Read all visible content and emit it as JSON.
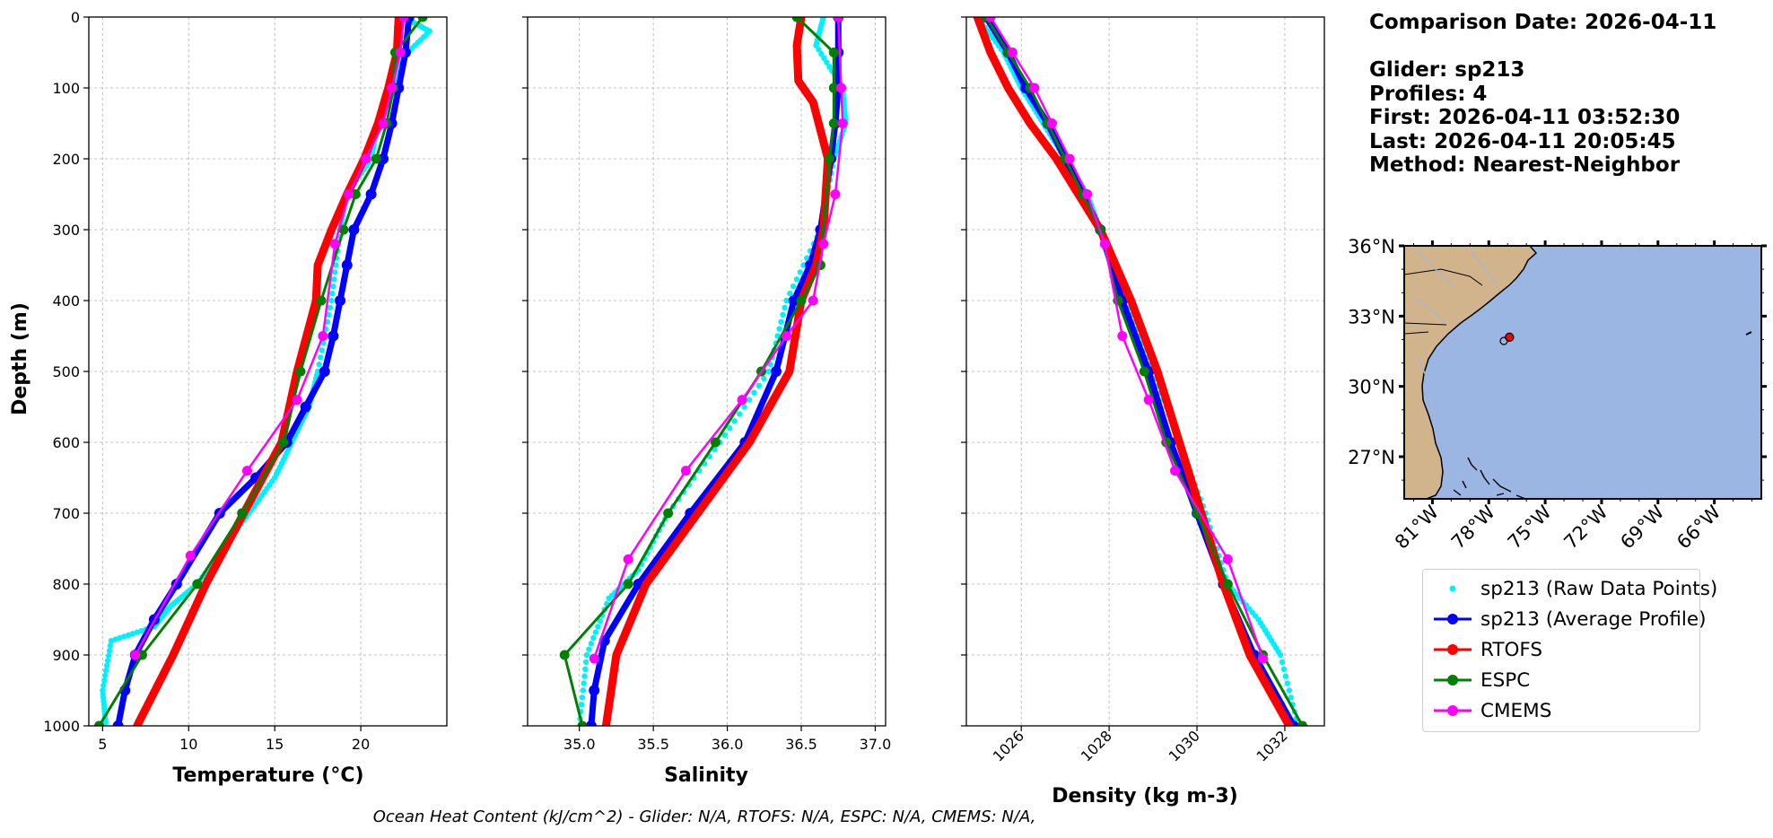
{
  "info": {
    "comparison_date": "Comparison Date: 2026-04-11",
    "glider": "Glider: sp213",
    "profiles": "Profiles: 4",
    "first": "First: 2026-04-11 03:52:30",
    "last": "Last: 2026-04-11 20:05:45",
    "method": "Method: Nearest-Neighbor"
  },
  "footer": "Ocean Heat Content (kJ/cm^2) - Glider: N/A,  RTOFS: N/A,  ESPC: N/A,  CMEMS: N/A,",
  "colors": {
    "raw": "#00f0ff",
    "avg": "#0000ff",
    "rtofs": "#ff0000",
    "espc": "#008000",
    "cmems": "#ff00ff",
    "ocean": "#9bb6e3",
    "land": "#d2b48c"
  },
  "legend": [
    {
      "key": "raw",
      "label": "sp213 (Raw Data Points)",
      "style": "points"
    },
    {
      "key": "avg",
      "label": "sp213 (Average Profile)",
      "style": "line"
    },
    {
      "key": "rtofs",
      "label": "RTOFS",
      "style": "line"
    },
    {
      "key": "espc",
      "label": "ESPC",
      "style": "line"
    },
    {
      "key": "cmems",
      "label": "CMEMS",
      "style": "line"
    }
  ],
  "map": {
    "lon_ticks": [
      "81°W",
      "78°W",
      "75°W",
      "72°W",
      "69°W",
      "66°W"
    ],
    "lat_ticks": [
      "36°N",
      "33°N",
      "30°N",
      "27°N"
    ],
    "extent": {
      "lon": [
        -82.5,
        -63.5
      ],
      "lat": [
        25.2,
        36.0
      ]
    },
    "glider_position": {
      "lon": -76.9,
      "lat": 32.1
    }
  },
  "chart_data": [
    {
      "type": "line",
      "xlabel": "Temperature (°C)",
      "ylabel": "Depth (m)",
      "xlim": [
        4.2,
        25.0
      ],
      "xticks": [
        5,
        10,
        15,
        20
      ],
      "ylim": [
        1000,
        0
      ],
      "yticks": [
        0,
        100,
        200,
        300,
        400,
        500,
        600,
        700,
        800,
        900,
        1000
      ],
      "grid": true,
      "series": [
        {
          "key": "raw",
          "name": "sp213 (Raw Data Points)",
          "x": [
            22.5,
            24.0,
            22.3,
            22.0,
            21.0,
            20.6,
            19.2,
            18.8,
            18.3,
            17.5,
            17.0,
            16.0,
            15.0,
            13.5,
            12.0,
            10.5,
            9.0,
            8.0,
            5.5,
            5.0,
            5.2
          ],
          "y": [
            0,
            20,
            60,
            100,
            150,
            200,
            250,
            300,
            400,
            500,
            550,
            600,
            650,
            700,
            750,
            800,
            830,
            860,
            880,
            950,
            1000
          ]
        },
        {
          "key": "avg",
          "name": "sp213 (Average Profile)",
          "x": [
            22.8,
            22.6,
            22.2,
            21.8,
            21.3,
            20.6,
            19.6,
            19.2,
            18.8,
            18.4,
            17.9,
            16.8,
            15.7,
            13.9,
            11.8,
            9.3,
            8.0,
            6.9,
            6.3,
            5.9
          ],
          "y": [
            0,
            50,
            100,
            150,
            200,
            250,
            300,
            350,
            400,
            450,
            500,
            550,
            600,
            650,
            700,
            800,
            850,
            900,
            950,
            1000
          ]
        },
        {
          "key": "rtofs",
          "name": "RTOFS",
          "x": [
            22.2,
            22.1,
            21.6,
            21.0,
            20.2,
            19.2,
            18.3,
            17.5,
            17.4,
            16.3,
            15.4,
            13.2,
            11.0,
            9.1,
            7.0
          ],
          "y": [
            0,
            50,
            100,
            150,
            200,
            250,
            300,
            350,
            400,
            500,
            600,
            700,
            800,
            900,
            1000
          ]
        },
        {
          "key": "espc",
          "name": "ESPC",
          "x": [
            23.6,
            22.0,
            21.9,
            21.5,
            20.9,
            19.7,
            19.0,
            17.7,
            16.5,
            15.5,
            13.1,
            10.5,
            7.3,
            4.8
          ],
          "y": [
            0,
            50,
            100,
            150,
            200,
            250,
            300,
            400,
            500,
            600,
            700,
            800,
            900,
            1000
          ]
        },
        {
          "key": "cmems",
          "name": "CMEMS",
          "x": [
            22.5,
            22.3,
            21.8,
            21.3,
            20.3,
            19.3,
            18.5,
            17.8,
            16.3,
            13.4,
            10.1,
            6.9
          ],
          "y": [
            0,
            50,
            100,
            150,
            200,
            250,
            320,
            450,
            540,
            640,
            760,
            900
          ]
        }
      ]
    },
    {
      "type": "line",
      "xlabel": "Salinity",
      "ylabel": "",
      "xlim": [
        34.65,
        37.07
      ],
      "xticks": [
        35.0,
        35.5,
        36.0,
        36.5,
        37.0
      ],
      "ylim": [
        1000,
        0
      ],
      "grid": true,
      "series": [
        {
          "key": "raw",
          "name": "sp213 (Raw Data Points)",
          "x": [
            36.65,
            36.6,
            36.78,
            36.8,
            36.72,
            36.63,
            36.4,
            36.28,
            35.95,
            35.6,
            35.4,
            35.2,
            35.05,
            35.0
          ],
          "y": [
            0,
            40,
            100,
            150,
            200,
            300,
            400,
            500,
            600,
            700,
            780,
            820,
            900,
            1000
          ]
        },
        {
          "key": "avg",
          "name": "sp213 (Average Profile)",
          "x": [
            36.75,
            36.75,
            36.75,
            36.73,
            36.7,
            36.63,
            36.56,
            36.45,
            36.33,
            36.12,
            35.75,
            35.4,
            35.17,
            35.1,
            35.08
          ],
          "y": [
            0,
            50,
            100,
            150,
            200,
            300,
            350,
            400,
            500,
            600,
            700,
            800,
            880,
            950,
            1000
          ]
        },
        {
          "key": "rtofs",
          "name": "RTOFS",
          "x": [
            36.5,
            36.47,
            36.48,
            36.58,
            36.68,
            36.65,
            36.6,
            36.5,
            36.42,
            36.15,
            35.8,
            35.45,
            35.25,
            35.18
          ],
          "y": [
            0,
            40,
            90,
            120,
            200,
            300,
            350,
            400,
            500,
            600,
            700,
            800,
            900,
            1000
          ]
        },
        {
          "key": "espc",
          "name": "ESPC",
          "x": [
            36.47,
            36.72,
            36.72,
            36.72,
            36.69,
            36.63,
            36.5,
            36.23,
            35.92,
            35.6,
            35.33,
            34.9,
            35.02
          ],
          "y": [
            0,
            50,
            100,
            150,
            200,
            350,
            400,
            500,
            600,
            700,
            800,
            900,
            1000
          ]
        },
        {
          "key": "cmems",
          "name": "CMEMS",
          "x": [
            36.75,
            36.77,
            36.78,
            36.73,
            36.65,
            36.58,
            36.4,
            36.1,
            35.72,
            35.33,
            35.1
          ],
          "y": [
            0,
            100,
            150,
            250,
            320,
            400,
            450,
            540,
            640,
            765,
            905
          ]
        }
      ]
    },
    {
      "type": "line",
      "xlabel": "Density (kg m-3)",
      "ylabel": "",
      "xlim": [
        1024.75,
        1032.9
      ],
      "xticks": [
        1026,
        1028,
        1030,
        1032
      ],
      "ylim": [
        1000,
        0
      ],
      "grid": true,
      "series": [
        {
          "key": "raw",
          "name": "sp213 (Raw Data Points)",
          "x": [
            1025.0,
            1025.6,
            1026.0,
            1026.5,
            1027.0,
            1027.5,
            1027.8,
            1028.4,
            1029.0,
            1029.6,
            1030.2,
            1030.7,
            1031.4,
            1031.9,
            1032.3
          ],
          "y": [
            0,
            50,
            100,
            150,
            200,
            250,
            300,
            400,
            500,
            600,
            700,
            800,
            850,
            900,
            1000
          ]
        },
        {
          "key": "avg",
          "name": "sp213 (Average Profile)",
          "x": [
            1025.2,
            1025.7,
            1026.1,
            1026.6,
            1027.0,
            1027.4,
            1027.8,
            1028.3,
            1028.9,
            1029.4,
            1030.0,
            1030.6,
            1031.3,
            1032.2
          ],
          "y": [
            0,
            50,
            100,
            150,
            200,
            250,
            300,
            400,
            500,
            600,
            700,
            800,
            900,
            1000
          ]
        },
        {
          "key": "rtofs",
          "name": "RTOFS",
          "x": [
            1025.0,
            1025.3,
            1025.7,
            1026.2,
            1026.8,
            1027.3,
            1027.8,
            1028.5,
            1029.1,
            1029.6,
            1030.1,
            1030.6,
            1031.2,
            1032.1
          ],
          "y": [
            0,
            50,
            100,
            150,
            200,
            250,
            300,
            400,
            500,
            600,
            700,
            800,
            900,
            1000
          ]
        },
        {
          "key": "espc",
          "name": "ESPC",
          "x": [
            1025.2,
            1025.7,
            1026.2,
            1026.6,
            1027.0,
            1027.4,
            1027.8,
            1028.2,
            1028.8,
            1029.3,
            1030.0,
            1030.7,
            1031.5,
            1032.4
          ],
          "y": [
            0,
            50,
            100,
            150,
            200,
            250,
            300,
            400,
            500,
            600,
            700,
            800,
            900,
            1000
          ]
        },
        {
          "key": "cmems",
          "name": "CMEMS",
          "x": [
            1025.3,
            1025.8,
            1026.3,
            1026.7,
            1027.1,
            1027.5,
            1027.9,
            1028.3,
            1028.9,
            1029.5,
            1030.7,
            1031.5
          ],
          "y": [
            0,
            50,
            100,
            150,
            200,
            250,
            320,
            450,
            540,
            640,
            765,
            905
          ]
        }
      ]
    }
  ]
}
